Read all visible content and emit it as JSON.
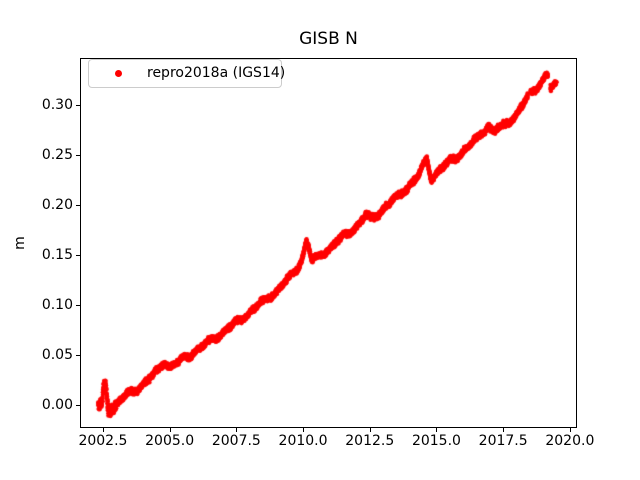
{
  "figure": {
    "background_color": "#ffffff",
    "text_color": "#000000",
    "axis_color": "#000000",
    "legend_border_color": "#cccccc"
  },
  "chart_data": {
    "type": "scatter",
    "title": "GISB N",
    "xlabel": "",
    "ylabel": "m",
    "grid": false,
    "xlim": [
      2001.64,
      2020.23
    ],
    "ylim": [
      -0.022,
      0.347
    ],
    "x_ticks": [
      2002.5,
      2005.0,
      2007.5,
      2010.0,
      2012.5,
      2015.0,
      2017.5,
      2020.0
    ],
    "x_tick_labels": [
      "2002.5",
      "2005.0",
      "2007.5",
      "2010.0",
      "2012.5",
      "2015.0",
      "2017.5",
      "2020.0"
    ],
    "y_ticks": [
      0.0,
      0.05,
      0.1,
      0.15,
      0.2,
      0.25,
      0.3
    ],
    "y_tick_labels": [
      "0.00",
      "0.05",
      "0.10",
      "0.15",
      "0.20",
      "0.25",
      "0.30"
    ],
    "legend": {
      "location": "upper left",
      "entries": [
        {
          "label": "repro2018a (IGS14)",
          "marker": "dot-icon",
          "marker_color": "#ff0000"
        }
      ]
    },
    "series": [
      {
        "name": "repro2018a (IGS14)",
        "color": "#ff0000",
        "marker": "dot",
        "marker_radius_px": 2.1,
        "points_per_year": 330,
        "scatter_sigma_m": 0.0014,
        "start_cluster_end_year": 2003.0,
        "start_cluster_sigma_m": 0.0025,
        "seasonal_amplitude_m": 0.0018,
        "trend_anchors": [
          [
            2002.32,
            0.0
          ],
          [
            2002.45,
            -0.002
          ],
          [
            2002.53,
            0.016
          ],
          [
            2002.6,
            0.02
          ],
          [
            2002.66,
            0.004
          ],
          [
            2002.72,
            -0.006
          ],
          [
            2002.85,
            -0.004
          ],
          [
            2003.0,
            0.001
          ],
          [
            2003.3,
            0.008
          ],
          [
            2003.6,
            0.013
          ],
          [
            2004.0,
            0.021
          ],
          [
            2004.5,
            0.032
          ],
          [
            2004.82,
            0.044
          ],
          [
            2005.0,
            0.038
          ],
          [
            2005.3,
            0.042
          ],
          [
            2005.7,
            0.049
          ],
          [
            2006.0,
            0.055
          ],
          [
            2006.5,
            0.063
          ],
          [
            2007.0,
            0.073
          ],
          [
            2007.5,
            0.082
          ],
          [
            2008.0,
            0.093
          ],
          [
            2008.5,
            0.103
          ],
          [
            2009.0,
            0.114
          ],
          [
            2009.5,
            0.127
          ],
          [
            2009.85,
            0.14
          ],
          [
            2010.0,
            0.15
          ],
          [
            2010.12,
            0.164
          ],
          [
            2010.22,
            0.157
          ],
          [
            2010.33,
            0.143
          ],
          [
            2010.6,
            0.149
          ],
          [
            2011.0,
            0.157
          ],
          [
            2011.5,
            0.168
          ],
          [
            2012.0,
            0.179
          ],
          [
            2012.35,
            0.189
          ],
          [
            2012.55,
            0.186
          ],
          [
            2013.0,
            0.196
          ],
          [
            2013.5,
            0.207
          ],
          [
            2014.0,
            0.22
          ],
          [
            2014.35,
            0.23
          ],
          [
            2014.64,
            0.246
          ],
          [
            2014.8,
            0.227
          ],
          [
            2015.0,
            0.232
          ],
          [
            2015.5,
            0.243
          ],
          [
            2016.0,
            0.254
          ],
          [
            2016.5,
            0.265
          ],
          [
            2016.95,
            0.28
          ],
          [
            2017.1,
            0.274
          ],
          [
            2017.5,
            0.278
          ],
          [
            2018.0,
            0.291
          ],
          [
            2018.4,
            0.307
          ],
          [
            2018.55,
            0.311
          ],
          [
            2019.0,
            0.326
          ],
          [
            2019.12,
            0.331
          ],
          [
            2019.17,
            0.33
          ],
          [
            2019.28,
            0.317
          ],
          [
            2019.5,
            0.32
          ]
        ],
        "gaps": [
          [
            2018.42,
            2018.52
          ],
          [
            2019.18,
            2019.27
          ]
        ]
      }
    ]
  }
}
